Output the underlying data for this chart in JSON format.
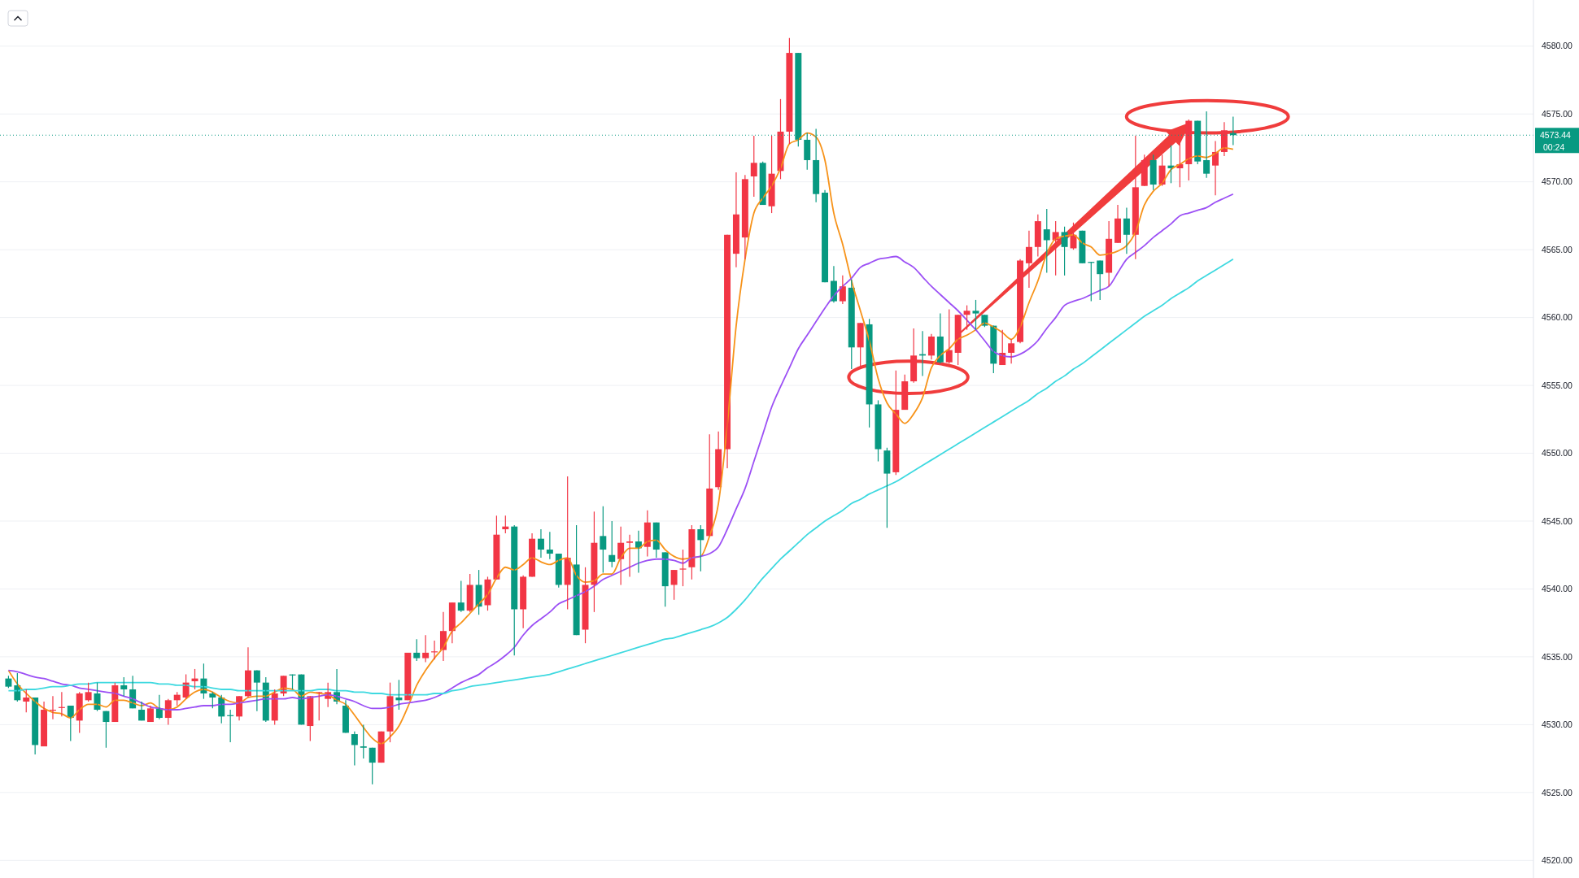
{
  "chart_data": {
    "type": "candlestick",
    "categories": [
      null,
      null,
      null,
      null,
      null,
      null,
      null,
      null,
      null,
      null,
      null,
      null,
      null,
      null,
      null,
      null,
      null,
      null,
      null,
      null,
      null,
      null,
      null,
      null,
      null,
      null,
      null,
      null,
      null,
      null,
      null,
      null,
      null,
      null,
      null,
      null,
      null,
      null,
      null,
      null,
      null,
      null,
      null,
      null,
      null,
      null,
      null,
      null,
      null,
      null,
      null,
      null,
      null,
      null,
      null,
      null,
      null,
      null,
      null,
      null,
      null,
      null,
      null,
      null,
      null,
      null,
      null,
      null,
      null,
      null,
      null,
      null,
      null,
      null,
      null,
      null,
      null,
      null,
      null,
      null,
      null,
      null,
      null,
      null,
      null,
      null,
      null,
      null,
      null,
      null,
      null,
      null,
      null,
      null,
      null,
      null,
      null,
      null,
      null,
      null,
      null,
      null,
      null,
      null,
      null,
      null,
      null,
      null,
      null,
      null,
      null,
      null,
      null,
      null,
      null,
      null,
      null,
      null,
      null,
      null,
      null,
      null,
      null,
      null,
      null,
      null,
      null,
      null,
      null,
      null,
      null,
      null,
      null,
      null,
      null,
      null,
      null,
      null,
      null
    ],
    "ohlc": [
      [
        4533.4,
        4533.6,
        4532.7,
        4532.8
      ],
      [
        4532.9,
        4533.8,
        4531.7,
        4531.8
      ],
      [
        4531.7,
        4532.6,
        4530.9,
        4532.0
      ],
      [
        4532.0,
        4532.0,
        4527.8,
        4528.5
      ],
      [
        4528.4,
        4531.7,
        4528.4,
        4531.1
      ],
      [
        4531.1,
        4532.1,
        4530.4,
        4531.1
      ],
      [
        4531.3,
        4532.4,
        4530.6,
        4531.3
      ],
      [
        4531.4,
        4531.4,
        4528.8,
        4530.5
      ],
      [
        4530.3,
        4532.4,
        4529.4,
        4532.3
      ],
      [
        4531.8,
        4533.1,
        4531.7,
        4532.4
      ],
      [
        4532.3,
        4533.1,
        4531.0,
        4531.1
      ],
      [
        4531.0,
        4531.0,
        4528.3,
        4530.2
      ],
      [
        4530.2,
        4533.1,
        4530.2,
        4532.9
      ],
      [
        4532.9,
        4533.5,
        4532.1,
        4532.6
      ],
      [
        4532.6,
        4533.6,
        4531.2,
        4531.2
      ],
      [
        4531.1,
        4531.7,
        4530.3,
        4530.3
      ],
      [
        4530.2,
        4531.4,
        4530.2,
        4531.2
      ],
      [
        4531.2,
        4532.2,
        4530.4,
        4530.5
      ],
      [
        4530.5,
        4531.9,
        4530.0,
        4531.8
      ],
      [
        4531.8,
        4532.4,
        4531.4,
        4532.2
      ],
      [
        4532.0,
        4533.7,
        4531.9,
        4533.1
      ],
      [
        4533.2,
        4534.1,
        4532.6,
        4533.4
      ],
      [
        4533.4,
        4534.5,
        4531.9,
        4532.3
      ],
      [
        4532.3,
        4532.4,
        4531.2,
        4532.0
      ],
      [
        4532.0,
        4532.2,
        4530.1,
        4530.6
      ],
      [
        4530.7,
        4531.1,
        4528.7,
        4530.7
      ],
      [
        4530.6,
        4532.1,
        4530.3,
        4532.1
      ],
      [
        4532.1,
        4535.7,
        4532.0,
        4534.0
      ],
      [
        4534.0,
        4534.0,
        4531.0,
        4533.1
      ],
      [
        4533.1,
        4533.5,
        4530.2,
        4530.3
      ],
      [
        4530.3,
        4532.6,
        4530.0,
        4532.3
      ],
      [
        4532.3,
        4533.6,
        4532.1,
        4533.6
      ],
      [
        4533.7,
        4533.7,
        4532.6,
        4533.7
      ],
      [
        4533.7,
        4533.7,
        4530.0,
        4530.0
      ],
      [
        4529.9,
        4532.1,
        4528.8,
        4532.1
      ],
      [
        4532.4,
        4532.4,
        4530.3,
        4532.4
      ],
      [
        4531.9,
        4533.1,
        4531.3,
        4532.4
      ],
      [
        4532.4,
        4534.1,
        4531.5,
        4531.7
      ],
      [
        4531.4,
        4531.8,
        4529.4,
        4529.4
      ],
      [
        4529.3,
        4529.5,
        4527.0,
        4528.5
      ],
      [
        4528.4,
        4530.0,
        4527.5,
        4528.3
      ],
      [
        4528.3,
        4528.3,
        4525.6,
        4527.2
      ],
      [
        4527.2,
        4529.5,
        4527.2,
        4529.5
      ],
      [
        4529.5,
        4533.1,
        4528.7,
        4532.1
      ],
      [
        4532.0,
        4533.3,
        4531.1,
        4531.8
      ],
      [
        4531.8,
        4535.3,
        4531.8,
        4535.3
      ],
      [
        4535.3,
        4536.3,
        4534.7,
        4534.9
      ],
      [
        4534.9,
        4536.6,
        4534.6,
        4535.3
      ],
      [
        4535.4,
        4536.2,
        4534.8,
        4535.4
      ],
      [
        4535.5,
        4538.3,
        4534.7,
        4536.9
      ],
      [
        4536.9,
        4539.0,
        4536.0,
        4539.0
      ],
      [
        4539.0,
        4540.6,
        4538.3,
        4538.4
      ],
      [
        4538.4,
        4541.1,
        4538.3,
        4540.3
      ],
      [
        4540.3,
        4541.4,
        4538.1,
        4538.7
      ],
      [
        4538.8,
        4540.9,
        4538.4,
        4540.7
      ],
      [
        4540.7,
        4545.4,
        4540.7,
        4544.0
      ],
      [
        4544.4,
        4545.4,
        4544.1,
        4544.6
      ],
      [
        4544.6,
        4544.7,
        4535.1,
        4538.5
      ],
      [
        4538.5,
        4541.0,
        4537.1,
        4540.9
      ],
      [
        4540.9,
        4544.1,
        4540.9,
        4543.7
      ],
      [
        4543.7,
        4544.4,
        4542.3,
        4542.9
      ],
      [
        4542.9,
        4544.2,
        4542.2,
        4542.6
      ],
      [
        4542.6,
        4542.6,
        4540.1,
        4540.3
      ],
      [
        4540.3,
        4548.3,
        4538.5,
        4542.3
      ],
      [
        4541.8,
        4544.7,
        4536.6,
        4536.6
      ],
      [
        4537.0,
        4541.6,
        4536.0,
        4540.3
      ],
      [
        4540.3,
        4545.7,
        4538.3,
        4543.4
      ],
      [
        4543.9,
        4546.1,
        4541.2,
        4542.9
      ],
      [
        4542.5,
        4545.0,
        4541.6,
        4542.0
      ],
      [
        4542.2,
        4544.6,
        4540.3,
        4543.4
      ],
      [
        4543.4,
        4544.0,
        4540.9,
        4543.5
      ],
      [
        4543.5,
        4544.3,
        4541.2,
        4543.0
      ],
      [
        4543.1,
        4545.8,
        4542.4,
        4544.9
      ],
      [
        4544.9,
        4544.9,
        4542.3,
        4542.9
      ],
      [
        4542.7,
        4542.7,
        4538.7,
        4540.2
      ],
      [
        4540.3,
        4541.4,
        4539.2,
        4541.4
      ],
      [
        4541.5,
        4542.9,
        4540.2,
        4541.5
      ],
      [
        4541.6,
        4544.7,
        4540.7,
        4544.4
      ],
      [
        4544.4,
        4544.7,
        4541.3,
        4543.6
      ],
      [
        4543.9,
        4551.4,
        4543.9,
        4547.4
      ],
      [
        4547.5,
        4551.6,
        4547.3,
        4550.3
      ],
      [
        4550.3,
        4566.1,
        4548.9,
        4566.1
      ],
      [
        4564.7,
        4570.7,
        4563.7,
        4567.6
      ],
      [
        4565.9,
        4570.5,
        4564.3,
        4570.2
      ],
      [
        4570.4,
        4573.4,
        4568.9,
        4571.4
      ],
      [
        4571.4,
        4571.5,
        4568.3,
        4568.3
      ],
      [
        4568.2,
        4573.4,
        4567.7,
        4570.6
      ],
      [
        4570.8,
        4576.1,
        4570.2,
        4573.7
      ],
      [
        4573.7,
        4580.6,
        4572.8,
        4579.5
      ],
      [
        4579.5,
        4579.5,
        4572.6,
        4573.1
      ],
      [
        4573.1,
        4573.6,
        4570.9,
        4571.6
      ],
      [
        4571.6,
        4573.9,
        4568.5,
        4569.1
      ],
      [
        4569.2,
        4569.4,
        4562.6,
        4562.6
      ],
      [
        4562.7,
        4563.8,
        4561.1,
        4561.2
      ],
      [
        4561.2,
        4563.1,
        4561.0,
        4562.3
      ],
      [
        4562.2,
        4562.8,
        4556.2,
        4557.8
      ],
      [
        4557.8,
        4559.6,
        4556.2,
        4559.6
      ],
      [
        4559.5,
        4559.9,
        4551.9,
        4553.6
      ],
      [
        4553.6,
        4553.9,
        4549.4,
        4550.3
      ],
      [
        4550.2,
        4550.4,
        4544.5,
        4548.5
      ],
      [
        4548.6,
        4556.1,
        4548.4,
        4553.2
      ],
      [
        4553.2,
        4555.8,
        4553.2,
        4555.3
      ],
      [
        4555.3,
        4559.2,
        4555.2,
        4557.2
      ],
      [
        4557.3,
        4559.0,
        4555.7,
        4557.2
      ],
      [
        4557.2,
        4558.8,
        4556.9,
        4558.6
      ],
      [
        4558.6,
        4560.3,
        4556.6,
        4556.7
      ],
      [
        4556.7,
        4560.6,
        4556.6,
        4557.6
      ],
      [
        4557.4,
        4560.2,
        4556.5,
        4560.2
      ],
      [
        4560.2,
        4560.9,
        4559.1,
        4560.5
      ],
      [
        4560.5,
        4561.3,
        4559.1,
        4560.3
      ],
      [
        4560.2,
        4560.2,
        4559.3,
        4559.4
      ],
      [
        4559.4,
        4559.4,
        4555.9,
        4556.6
      ],
      [
        4556.5,
        4559.1,
        4556.5,
        4557.4
      ],
      [
        4557.4,
        4558.4,
        4556.6,
        4558.1
      ],
      [
        4558.2,
        4564.3,
        4558.1,
        4564.2
      ],
      [
        4564.0,
        4566.4,
        4562.2,
        4565.2
      ],
      [
        4565.2,
        4567.6,
        4564.5,
        4567.1
      ],
      [
        4566.5,
        4568.0,
        4563.3,
        4565.7
      ],
      [
        4565.7,
        4567.1,
        4563.1,
        4566.3
      ],
      [
        4566.3,
        4566.7,
        4563.1,
        4565.2
      ],
      [
        4565.1,
        4567.0,
        4565.0,
        4566.1
      ],
      [
        4566.4,
        4566.4,
        4564.0,
        4564.0
      ],
      [
        4564.1,
        4564.1,
        4561.2,
        4564.1
      ],
      [
        4564.2,
        4564.2,
        4561.3,
        4563.2
      ],
      [
        4563.3,
        4567.1,
        4562.3,
        4565.8
      ],
      [
        4565.5,
        4568.3,
        4565.5,
        4567.3
      ],
      [
        4567.3,
        4568.1,
        4564.7,
        4566.1
      ],
      [
        4566.1,
        4573.4,
        4564.3,
        4569.6
      ],
      [
        4569.7,
        4572.0,
        4569.7,
        4571.6
      ],
      [
        4571.6,
        4572.0,
        4569.4,
        4569.8
      ],
      [
        4569.8,
        4572.0,
        4569.7,
        4571.2
      ],
      [
        4571.2,
        4572.7,
        4569.9,
        4571.0
      ],
      [
        4571.0,
        4573.0,
        4569.6,
        4571.3
      ],
      [
        4571.3,
        4574.6,
        4570.1,
        4574.5
      ],
      [
        4574.5,
        4574.5,
        4571.3,
        4571.5
      ],
      [
        4571.6,
        4575.2,
        4570.3,
        4570.6
      ],
      [
        4571.2,
        4573.0,
        4569.0,
        4572.2
      ],
      [
        4572.2,
        4574.4,
        4571.9,
        4573.8
      ],
      [
        4573.6,
        4574.8,
        4572.7,
        4573.44
      ]
    ],
    "colors": [
      "#089981",
      "#089981",
      "#f23645",
      "#089981",
      "#f23645",
      "#f23645",
      "#f23645",
      "#089981",
      "#f23645",
      "#f23645",
      "#089981",
      "#089981",
      "#f23645",
      "#089981",
      "#089981",
      "#089981",
      "#f23645",
      "#089981",
      "#f23645",
      "#f23645",
      "#f23645",
      "#f23645",
      "#089981",
      "#089981",
      "#089981",
      "#089981",
      "#f23645",
      "#f23645",
      "#089981",
      "#089981",
      "#f23645",
      "#f23645",
      "#089981",
      "#089981",
      "#f23645",
      "#f23645",
      "#f23645",
      "#089981",
      "#089981",
      "#089981",
      "#089981",
      "#089981",
      "#f23645",
      "#f23645",
      "#089981",
      "#f23645",
      "#089981",
      "#f23645",
      "#f23645",
      "#f23645",
      "#f23645",
      "#089981",
      "#f23645",
      "#089981",
      "#f23645",
      "#f23645",
      "#f23645",
      "#089981",
      "#f23645",
      "#f23645",
      "#089981",
      "#089981",
      "#089981",
      "#f23645",
      "#089981",
      "#f23645",
      "#f23645",
      "#089981",
      "#089981",
      "#f23645",
      "#f23645",
      "#089981",
      "#f23645",
      "#089981",
      "#089981",
      "#f23645",
      "#f23645",
      "#f23645",
      "#089981",
      "#f23645",
      "#f23645",
      "#f23645",
      "#f23645",
      "#f23645",
      "#f23645",
      "#089981",
      "#f23645",
      "#f23645",
      "#f23645",
      "#089981",
      "#089981",
      "#089981",
      "#089981",
      "#089981",
      "#f23645",
      "#089981",
      "#f23645",
      "#089981",
      "#089981",
      "#089981",
      "#f23645",
      "#f23645",
      "#f23645",
      "#089981",
      "#f23645",
      "#089981",
      "#f23645",
      "#f23645",
      "#f23645",
      "#089981",
      "#089981",
      "#089981",
      "#f23645",
      "#f23645",
      "#f23645",
      "#f23645",
      "#f23645",
      "#089981",
      "#f23645",
      "#089981",
      "#f23645",
      "#089981",
      "#089981",
      "#089981",
      "#f23645",
      "#f23645",
      "#089981",
      "#f23645",
      "#f23645",
      "#089981",
      "#f23645",
      "#089981",
      "#f23645",
      "#f23645",
      "#089981",
      "#089981",
      "#f23645",
      "#f23645",
      "#089981"
    ],
    "series": [
      {
        "type": "line",
        "color": "#f7931a",
        "values": [
          4534.0,
          4533.0,
          4532.3,
          4531.7,
          4531.2,
          4530.9,
          4530.8,
          4530.5,
          4531.1,
          4531.5,
          4531.5,
          4531.3,
          4531.8,
          4531.8,
          4531.6,
          4531.4,
          4531.6,
          4531.2,
          4531.1,
          4531.3,
          4531.9,
          4532.4,
          4532.6,
          4532.4,
          4532.0,
          4531.7,
          4531.6,
          4532.0,
          4532.1,
          4532.1,
          4532.4,
          4532.7,
          4532.6,
          4532.1,
          4532.4,
          4532.3,
          4532.2,
          4531.8,
          4531.5,
          4530.7,
          4529.8,
          4529.0,
          4528.6,
          4529.1,
          4529.9,
          4531.3,
          4532.9,
          4534.0,
          4534.9,
          4535.7,
          4536.9,
          4537.5,
          4538.2,
          4538.9,
          4539.6,
          4540.8,
          4541.6,
          4541.4,
          4541.8,
          4542.3,
          4542.0,
          4541.8,
          4542.1,
          4542.3,
          4541.0,
          4540.5,
          4540.6,
          4541.1,
          4541.1,
          4542.3,
          4543.0,
          4543.0,
          4543.5,
          4543.6,
          4542.9,
          4542.4,
          4542.2,
          4542.3,
          4542.4,
          4543.9,
          4546.3,
          4552.1,
          4559.4,
          4564.3,
          4567.7,
          4568.8,
          4569.7,
          4571.0,
          4572.8,
          4573.1,
          4573.6,
          4573.3,
          4571.6,
          4567.7,
          4565.4,
          4562.7,
          4560.5,
          4558.3,
          4555.5,
          4553.7,
          4552.9,
          4552.2,
          4552.9,
          4554.1,
          4556.3,
          4557.2,
          4557.7,
          4558.4,
          4558.7,
          4559.1,
          4559.6,
          4559.3,
          4558.9,
          4558.4,
          4559.3,
          4561.1,
          4562.7,
          4564.7,
          4565.8,
          4566.0,
          4566.1,
          4565.5,
          4565.2,
          4564.6,
          4564.7,
          4564.9,
          4565.3,
          4566.3,
          4568.3,
          4569.3,
          4569.9,
          4570.9,
          4571.3,
          4571.7,
          4571.9,
          4571.8,
          4572.1,
          4572.5,
          4572.4
        ]
      },
      {
        "type": "line",
        "color": "#9c50f5",
        "values": [
          4534.0,
          4533.9,
          4533.7,
          4533.5,
          4533.4,
          4533.2,
          4533.0,
          4532.9,
          4532.7,
          4532.6,
          4532.5,
          4532.4,
          4532.3,
          4532.1,
          4531.9,
          4531.6,
          4531.3,
          4531.2,
          4531.1,
          4531.1,
          4531.2,
          4531.3,
          4531.4,
          4531.4,
          4531.5,
          4531.5,
          4531.6,
          4531.7,
          4531.8,
          4531.9,
          4531.9,
          4531.9,
          4532.0,
          4531.9,
          4532.0,
          4532.1,
          4532.2,
          4532.1,
          4531.9,
          4531.7,
          4531.4,
          4531.2,
          4531.2,
          4531.3,
          4531.5,
          4531.6,
          4531.7,
          4531.8,
          4532.0,
          4532.3,
          4532.7,
          4533.1,
          4533.4,
          4533.7,
          4534.2,
          4534.6,
          4535.1,
          4535.7,
          4536.6,
          4537.3,
          4537.8,
          4538.3,
          4538.9,
          4539.2,
          4539.5,
          4539.8,
          4540.2,
          4540.7,
          4541.0,
          4541.3,
          4541.6,
          4541.9,
          4542.1,
          4542.2,
          4542.2,
          4542.1,
          4541.9,
          4542.3,
          4542.4,
          4542.6,
          4543.1,
          4544.4,
          4545.9,
          4547.4,
          4549.4,
          4551.4,
          4553.4,
          4554.9,
          4556.3,
          4557.7,
          4558.7,
          4559.7,
          4560.7,
          4561.6,
          4562.3,
          4562.9,
          4563.7,
          4564.0,
          4564.3,
          4564.4,
          4564.5,
          4564.1,
          4563.7,
          4563.0,
          4562.3,
          4561.7,
          4561.1,
          4560.5,
          4559.8,
          4559.1,
          4558.3,
          4557.5,
          4557.2,
          4557.1,
          4557.3,
          4557.7,
          4558.3,
          4559.2,
          4560.0,
          4560.9,
          4561.2,
          4561.4,
          4561.7,
          4562.0,
          4562.3,
          4563.3,
          4564.3,
          4564.8,
          4565.3,
          4565.9,
          4566.4,
          4566.9,
          4567.5,
          4567.7,
          4567.9,
          4568.1,
          4568.5,
          4568.8,
          4569.1
        ]
      },
      {
        "type": "line",
        "color": "#3ed9e0",
        "values": [
          4532.5,
          4532.5,
          4532.6,
          4532.6,
          4532.7,
          4532.8,
          4532.8,
          4532.9,
          4533.0,
          4533.0,
          4533.1,
          4533.1,
          4533.1,
          4533.1,
          4533.1,
          4533.1,
          4533.1,
          4533.0,
          4533.0,
          4532.9,
          4532.9,
          4532.8,
          4532.8,
          4532.7,
          4532.6,
          4532.6,
          4532.5,
          4532.5,
          4532.5,
          4532.5,
          4532.5,
          4532.5,
          4532.5,
          4532.5,
          4532.5,
          4532.6,
          4532.6,
          4532.5,
          4532.5,
          4532.4,
          4532.4,
          4532.3,
          4532.3,
          4532.2,
          4532.2,
          4532.2,
          4532.2,
          4532.2,
          4532.3,
          4532.3,
          4532.5,
          4532.6,
          4532.8,
          4532.9,
          4533.0,
          4533.1,
          4533.2,
          4533.3,
          4533.4,
          4533.5,
          4533.6,
          4533.7,
          4533.9,
          4534.1,
          4534.3,
          4534.5,
          4534.7,
          4534.9,
          4535.1,
          4535.3,
          4535.5,
          4535.7,
          4535.9,
          4536.1,
          4536.3,
          4536.4,
          4536.6,
          4536.8,
          4537.0,
          4537.2,
          4537.5,
          4537.9,
          4538.5,
          4539.2,
          4540.0,
          4540.8,
          4541.5,
          4542.2,
          4542.8,
          4543.4,
          4544.0,
          4544.5,
          4545.0,
          4545.4,
          4545.8,
          4546.3,
          4546.6,
          4547.0,
          4547.3,
          4547.6,
          4547.9,
          4548.3,
          4548.7,
          4549.1,
          4549.5,
          4549.9,
          4550.3,
          4550.7,
          4551.1,
          4551.5,
          4551.9,
          4552.3,
          4552.7,
          4553.1,
          4553.5,
          4553.9,
          4554.4,
          4554.8,
          4555.3,
          4555.7,
          4556.2,
          4556.6,
          4557.1,
          4557.6,
          4558.1,
          4558.6,
          4559.1,
          4559.6,
          4560.1,
          4560.5,
          4560.9,
          4561.4,
          4561.8,
          4562.2,
          4562.7,
          4563.1,
          4563.5,
          4563.9,
          4564.3
        ]
      }
    ],
    "ylim": [
      4518.7,
      4583.4
    ],
    "yticks": [
      {
        "value": 4520,
        "label": "4520.00"
      },
      {
        "value": 4525,
        "label": "4525.00"
      },
      {
        "value": 4530,
        "label": "4530.00"
      },
      {
        "value": 4535,
        "label": "4535.00"
      },
      {
        "value": 4540,
        "label": "4540.00"
      },
      {
        "value": 4545,
        "label": "4545.00"
      },
      {
        "value": 4550,
        "label": "4550.00"
      },
      {
        "value": 4555,
        "label": "4555.00"
      },
      {
        "value": 4560,
        "label": "4560.00"
      },
      {
        "value": 4565,
        "label": "4565.00"
      },
      {
        "value": 4570,
        "label": "4570.00"
      },
      {
        "value": 4575,
        "label": "4575.00"
      },
      {
        "value": 4580,
        "label": "4580.00"
      }
    ],
    "tick_labels": "y",
    "grid": "y",
    "ref_lines": [
      {
        "axis": "y",
        "value": 4573.44,
        "label": "4573.44",
        "color": "#089981",
        "line_style": "dotted"
      }
    ],
    "annotations": [
      "00:24"
    ]
  }
}
